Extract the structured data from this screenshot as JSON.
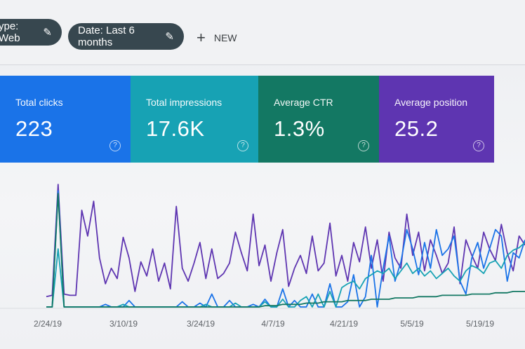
{
  "filters": {
    "type_chip": "ype: Web",
    "date_chip": "Date: Last 6 months",
    "new_label": "NEW"
  },
  "metrics": [
    {
      "label": "Total clicks",
      "value": "223",
      "color": "#1a73e8"
    },
    {
      "label": "Total impressions",
      "value": "17.6K",
      "color": "#17a2b4"
    },
    {
      "label": "Average CTR",
      "value": "1.3%",
      "color": "#137863"
    },
    {
      "label": "Average position",
      "value": "25.2",
      "color": "#5e35b1"
    }
  ],
  "icons": [
    "pencil-icon",
    "plus-icon",
    "help-icon"
  ],
  "chart_data": {
    "type": "line",
    "x_tick_labels": [
      "2/24/19",
      "3/10/19",
      "3/24/19",
      "4/7/19",
      "4/21/19",
      "5/5/19",
      "5/19/19"
    ],
    "series": [
      {
        "color": "#5e35b1",
        "values": [
          8,
          9,
          95,
          10,
          9,
          9,
          75,
          55,
          82,
          38,
          18,
          30,
          22,
          54,
          38,
          12,
          35,
          24,
          45,
          20,
          34,
          14,
          78,
          30,
          20,
          34,
          50,
          22,
          45,
          22,
          26,
          34,
          58,
          42,
          28,
          72,
          32,
          48,
          20,
          42,
          60,
          16,
          30,
          40,
          26,
          55,
          28,
          34,
          65,
          24,
          40,
          20,
          50,
          35,
          62,
          30,
          52,
          20,
          58,
          38,
          30,
          72,
          40,
          58,
          28,
          52,
          40,
          26,
          34,
          62,
          18,
          52,
          40,
          30,
          58,
          45,
          36,
          64,
          42,
          28,
          55,
          48
        ]
      },
      {
        "color": "#1a73e8",
        "values": [
          0,
          0,
          90,
          0,
          0,
          0,
          0,
          0,
          0,
          0,
          2,
          0,
          0,
          0,
          5,
          0,
          0,
          0,
          0,
          0,
          0,
          0,
          0,
          4,
          0,
          0,
          3,
          0,
          10,
          0,
          0,
          5,
          0,
          0,
          0,
          2,
          0,
          6,
          0,
          0,
          14,
          0,
          5,
          0,
          0,
          10,
          0,
          0,
          18,
          0,
          0,
          4,
          25,
          0,
          8,
          40,
          0,
          30,
          55,
          20,
          35,
          60,
          45,
          25,
          50,
          30,
          60,
          40,
          45,
          55,
          20,
          10,
          38,
          50,
          30,
          45,
          60,
          55,
          20,
          42,
          38,
          52
        ]
      },
      {
        "color": "#17a2b4",
        "values": [
          0,
          0,
          45,
          0,
          0,
          0,
          0,
          0,
          0,
          0,
          0,
          0,
          0,
          2,
          0,
          0,
          0,
          0,
          0,
          0,
          0,
          0,
          0,
          0,
          0,
          0,
          0,
          2,
          0,
          0,
          0,
          0,
          3,
          0,
          0,
          0,
          0,
          4,
          0,
          0,
          6,
          0,
          0,
          5,
          8,
          0,
          10,
          0,
          12,
          0,
          15,
          18,
          20,
          14,
          22,
          25,
          28,
          26,
          30,
          22,
          28,
          34,
          26,
          30,
          24,
          28,
          22,
          26,
          30,
          24,
          20,
          28,
          32,
          30,
          26,
          34,
          36,
          30,
          40,
          44,
          46,
          50
        ]
      },
      {
        "color": "#137863",
        "values": [
          0,
          0,
          88,
          0,
          0,
          0,
          0,
          0,
          0,
          0,
          0,
          0,
          0,
          0,
          0,
          0,
          0,
          0,
          0,
          0,
          0,
          0,
          0,
          0,
          0,
          0,
          0,
          0,
          0,
          0,
          0,
          0,
          0,
          0,
          0,
          0,
          0,
          1,
          1,
          1,
          2,
          2,
          2,
          2,
          3,
          3,
          3,
          4,
          4,
          4,
          4,
          5,
          5,
          5,
          5,
          6,
          6,
          6,
          6,
          7,
          7,
          7,
          7,
          8,
          8,
          8,
          8,
          9,
          9,
          9,
          9,
          9,
          10,
          10,
          10,
          10,
          11,
          11,
          11,
          12,
          12,
          12
        ]
      }
    ]
  }
}
